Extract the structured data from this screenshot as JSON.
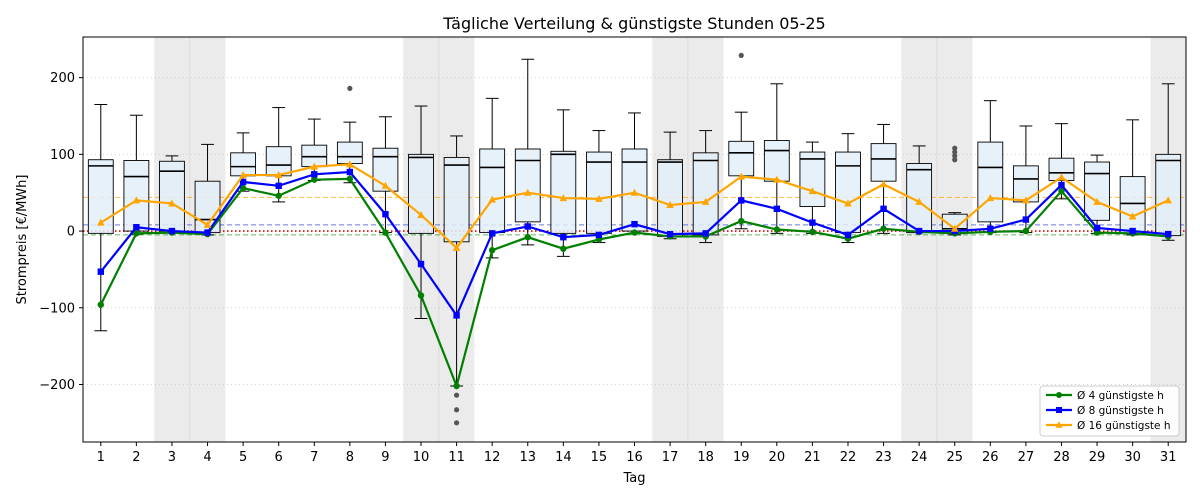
{
  "chart_data": {
    "type": "box",
    "title": "Tägliche Verteilung & günstigste Stunden 05-25",
    "xlabel": "Tag",
    "ylabel": "Strompreis [€/MWh]",
    "xlim": [
      0.5,
      31.5
    ],
    "ylim": [
      -275,
      253
    ],
    "yticks": [
      -200,
      -100,
      0,
      100,
      200
    ],
    "days": [
      1,
      2,
      3,
      4,
      5,
      6,
      7,
      8,
      9,
      10,
      11,
      12,
      13,
      14,
      15,
      16,
      17,
      18,
      19,
      20,
      21,
      22,
      23,
      24,
      25,
      26,
      27,
      28,
      29,
      30,
      31
    ],
    "weekend_days": [
      3,
      4,
      10,
      11,
      17,
      18,
      24,
      25,
      31
    ],
    "grid": "y-dotted",
    "legend_position": "lower-right",
    "colors": {
      "box_fill": "#e3eef8",
      "weekend_shade": "#ebebeb",
      "series_4h": "#008000",
      "series_8h": "#0000ff",
      "series_16h": "#ffa500",
      "zero_line": "#e00000"
    },
    "reference_lines": [
      {
        "y": 0,
        "color": "#e00000",
        "style": "dotted"
      },
      {
        "y": -5,
        "color": "#2ca02c",
        "style": "dashed"
      },
      {
        "y": 8,
        "color": "#3a50d9",
        "style": "dashed"
      },
      {
        "y": 44,
        "color": "#ffa500",
        "style": "dashed"
      }
    ],
    "boxes": [
      {
        "day": 1,
        "whislo": -130,
        "q1": -3,
        "med": 85,
        "q3": 93,
        "whishi": 165,
        "fliers": []
      },
      {
        "day": 2,
        "whislo": -4,
        "q1": 0,
        "med": 71,
        "q3": 92,
        "whishi": 151,
        "fliers": []
      },
      {
        "day": 3,
        "whislo": -2,
        "q1": 0,
        "med": 78,
        "q3": 91,
        "whishi": 98,
        "fliers": []
      },
      {
        "day": 4,
        "whislo": -5,
        "q1": -2,
        "med": 15,
        "q3": 65,
        "whishi": 113,
        "fliers": []
      },
      {
        "day": 5,
        "whislo": 52,
        "q1": 72,
        "med": 84,
        "q3": 102,
        "whishi": 128,
        "fliers": []
      },
      {
        "day": 6,
        "whislo": 38,
        "q1": 72,
        "med": 86,
        "q3": 110,
        "whishi": 161,
        "fliers": []
      },
      {
        "day": 7,
        "whislo": 66,
        "q1": 84,
        "med": 97,
        "q3": 112,
        "whishi": 146,
        "fliers": []
      },
      {
        "day": 8,
        "whislo": 63,
        "q1": 88,
        "med": 97,
        "q3": 116,
        "whishi": 142,
        "fliers": [
          186
        ]
      },
      {
        "day": 9,
        "whislo": -2,
        "q1": 52,
        "med": 97,
        "q3": 108,
        "whishi": 149,
        "fliers": []
      },
      {
        "day": 10,
        "whislo": -114,
        "q1": -3,
        "med": 96,
        "q3": 100,
        "whishi": 163,
        "fliers": []
      },
      {
        "day": 11,
        "whislo": -202,
        "q1": -14,
        "med": 86,
        "q3": 96,
        "whishi": 124,
        "fliers": [
          -214,
          -233,
          -250
        ]
      },
      {
        "day": 12,
        "whislo": -35,
        "q1": -2,
        "med": 83,
        "q3": 107,
        "whishi": 173,
        "fliers": []
      },
      {
        "day": 13,
        "whislo": -18,
        "q1": 12,
        "med": 92,
        "q3": 107,
        "whishi": 224,
        "fliers": []
      },
      {
        "day": 14,
        "whislo": -33,
        "q1": -3,
        "med": 100,
        "q3": 104,
        "whishi": 158,
        "fliers": []
      },
      {
        "day": 15,
        "whislo": -15,
        "q1": -3,
        "med": 90,
        "q3": 103,
        "whishi": 131,
        "fliers": []
      },
      {
        "day": 16,
        "whislo": -3,
        "q1": 0,
        "med": 90,
        "q3": 107,
        "whishi": 154,
        "fliers": []
      },
      {
        "day": 17,
        "whislo": -10,
        "q1": -7,
        "med": 90,
        "q3": 93,
        "whishi": 129,
        "fliers": []
      },
      {
        "day": 18,
        "whislo": -15,
        "q1": -5,
        "med": 92,
        "q3": 102,
        "whishi": 131,
        "fliers": []
      },
      {
        "day": 19,
        "whislo": 3,
        "q1": 72,
        "med": 102,
        "q3": 117,
        "whishi": 155,
        "fliers": [
          229
        ]
      },
      {
        "day": 20,
        "whislo": -3,
        "q1": 65,
        "med": 105,
        "q3": 118,
        "whishi": 192,
        "fliers": []
      },
      {
        "day": 21,
        "whislo": -3,
        "q1": 32,
        "med": 94,
        "q3": 103,
        "whishi": 116,
        "fliers": []
      },
      {
        "day": 22,
        "whislo": -15,
        "q1": -2,
        "med": 85,
        "q3": 103,
        "whishi": 127,
        "fliers": []
      },
      {
        "day": 23,
        "whislo": -3,
        "q1": 65,
        "med": 94,
        "q3": 114,
        "whishi": 139,
        "fliers": []
      },
      {
        "day": 24,
        "whislo": -2,
        "q1": -2,
        "med": 80,
        "q3": 88,
        "whishi": 111,
        "fliers": []
      },
      {
        "day": 25,
        "whislo": -5,
        "q1": -3,
        "med": 3,
        "q3": 22,
        "whishi": 24,
        "fliers": [
          93,
          98,
          103,
          108
        ]
      },
      {
        "day": 26,
        "whislo": -2,
        "q1": 12,
        "med": 83,
        "q3": 116,
        "whishi": 170,
        "fliers": []
      },
      {
        "day": 27,
        "whislo": -2,
        "q1": 38,
        "med": 68,
        "q3": 85,
        "whishi": 137,
        "fliers": []
      },
      {
        "day": 28,
        "whislo": 42,
        "q1": 66,
        "med": 76,
        "q3": 95,
        "whishi": 140,
        "fliers": []
      },
      {
        "day": 29,
        "whislo": -3,
        "q1": 14,
        "med": 75,
        "q3": 90,
        "whishi": 99,
        "fliers": []
      },
      {
        "day": 30,
        "whislo": -5,
        "q1": -3,
        "med": 36,
        "q3": 71,
        "whishi": 145,
        "fliers": []
      },
      {
        "day": 31,
        "whislo": -12,
        "q1": -6,
        "med": 92,
        "q3": 100,
        "whishi": 192,
        "fliers": []
      }
    ],
    "series": [
      {
        "name": "Ø 4 günstigste h",
        "color": "#008000",
        "marker": "circle",
        "values": [
          -96,
          -3,
          -2,
          -4,
          56,
          46,
          67,
          68,
          -2,
          -84,
          -202,
          -25,
          -8,
          -23,
          -11,
          -2,
          -7,
          -7,
          13,
          2,
          -1,
          -10,
          3,
          -1,
          -3,
          -1,
          0,
          52,
          -2,
          -3,
          -7
        ]
      },
      {
        "name": "Ø 8 günstigste h",
        "color": "#0000ff",
        "marker": "square",
        "values": [
          -53,
          5,
          0,
          -2,
          64,
          59,
          74,
          77,
          22,
          -43,
          -110,
          -3,
          6,
          -8,
          -5,
          9,
          -4,
          -3,
          40,
          29,
          11,
          -5,
          29,
          0,
          0,
          3,
          15,
          60,
          4,
          0,
          -4
        ]
      },
      {
        "name": "Ø 16 günstigste h",
        "color": "#ffa500",
        "marker": "triangle",
        "values": [
          11,
          40,
          36,
          8,
          73,
          73,
          84,
          87,
          59,
          21,
          -22,
          41,
          50,
          43,
          42,
          50,
          34,
          38,
          71,
          67,
          52,
          36,
          61,
          38,
          3,
          43,
          40,
          70,
          38,
          19,
          40
        ]
      }
    ]
  }
}
